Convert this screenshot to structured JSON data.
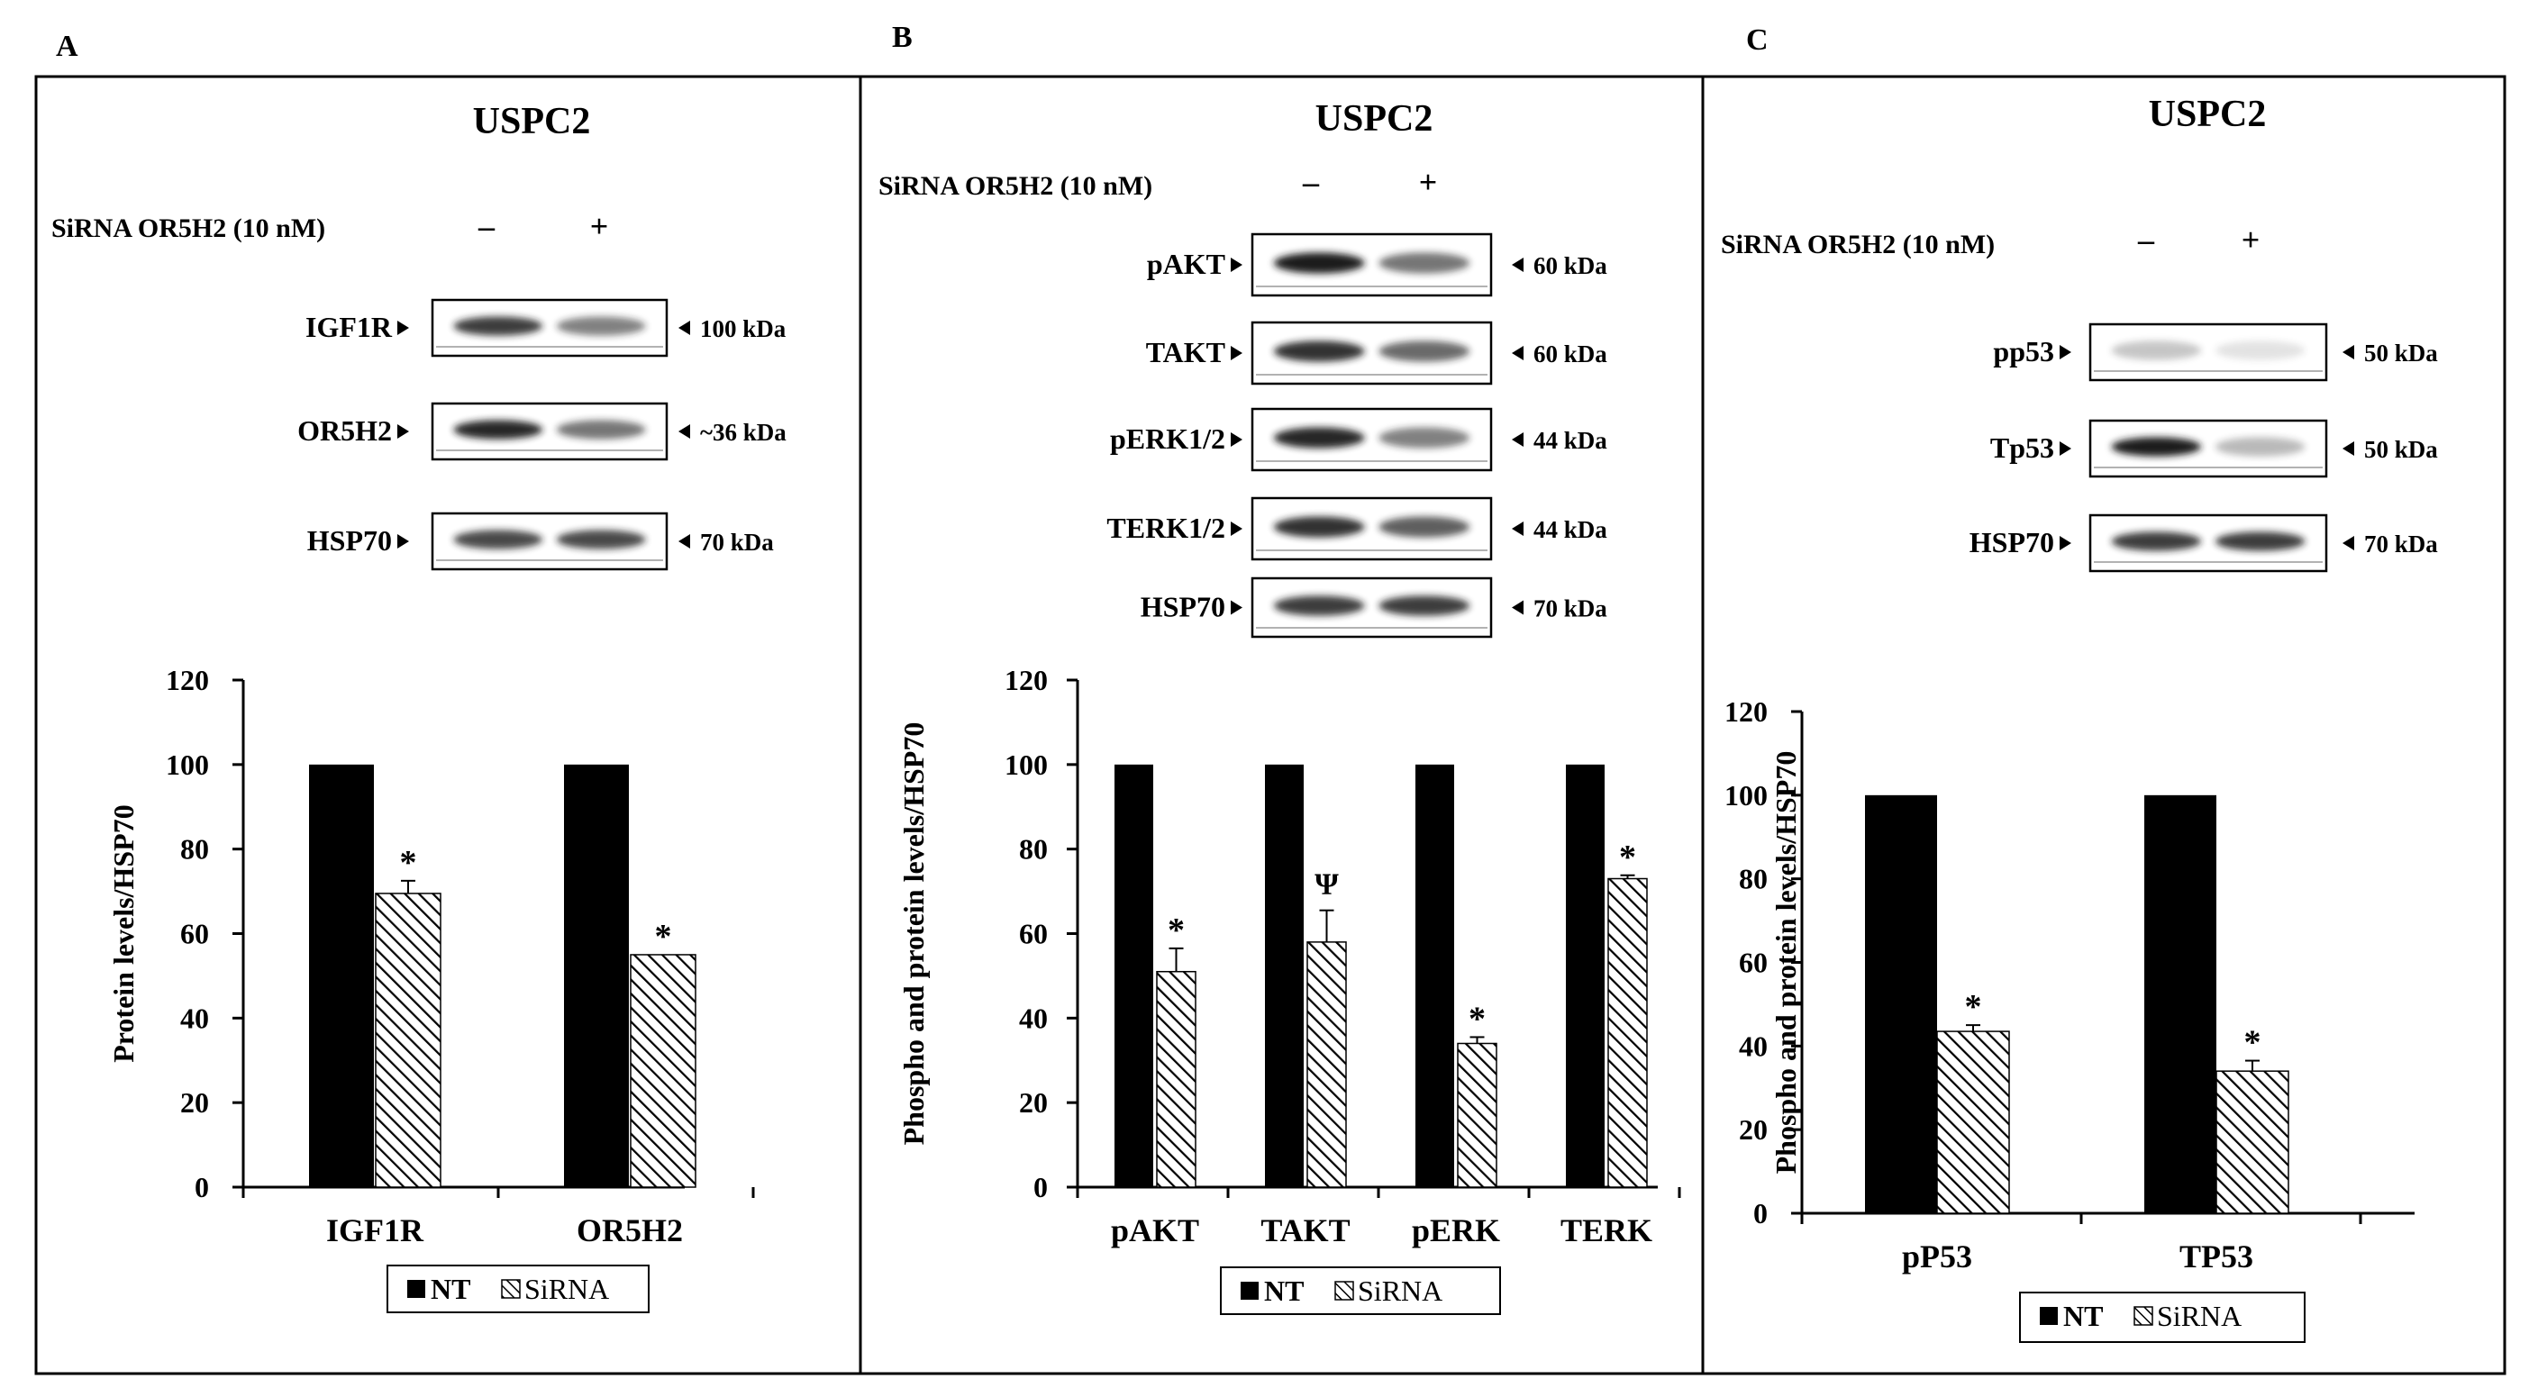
{
  "colors": {
    "nt": "#000000",
    "sirna_stroke": "#000000",
    "background": "#ffffff",
    "band": "#1a1a1a"
  },
  "panels": [
    {
      "letter": "A",
      "cell_line": "USPC2",
      "treatment_label": "SiRNA OR5H2 (10 nM)",
      "treatment_minus": "–",
      "treatment_plus": "+",
      "blots": [
        {
          "label": "IGF1R",
          "kda": "100 kDa",
          "nt_intensity": 0.85,
          "si_intensity": 0.55
        },
        {
          "label": "OR5H2",
          "kda": "~36 kDa",
          "nt_intensity": 0.95,
          "si_intensity": 0.6
        },
        {
          "label": "HSP70",
          "kda": "70 kDa",
          "nt_intensity": 0.8,
          "si_intensity": 0.8
        }
      ]
    },
    {
      "letter": "B",
      "cell_line": "USPC2",
      "treatment_label": "SiRNA OR5H2 (10 nM)",
      "treatment_minus": "–",
      "treatment_plus": "+",
      "blots": [
        {
          "label": "pAKT",
          "kda": "60 kDa",
          "nt_intensity": 1.0,
          "si_intensity": 0.6
        },
        {
          "label": "TAKT",
          "kda": "60 kDa",
          "nt_intensity": 0.9,
          "si_intensity": 0.65
        },
        {
          "label": "pERK1/2",
          "kda": "44 kDa",
          "nt_intensity": 0.95,
          "si_intensity": 0.55
        },
        {
          "label": "TERK1/2",
          "kda": "44 kDa",
          "nt_intensity": 0.9,
          "si_intensity": 0.7
        },
        {
          "label": "HSP70",
          "kda": "70 kDa",
          "nt_intensity": 0.85,
          "si_intensity": 0.85
        }
      ]
    },
    {
      "letter": "C",
      "cell_line": "USPC2",
      "treatment_label": "SiRNA OR5H2 (10 nM)",
      "treatment_minus": "–",
      "treatment_plus": "+",
      "blots": [
        {
          "label": "pp53",
          "kda": "50 kDa",
          "nt_intensity": 0.25,
          "si_intensity": 0.12
        },
        {
          "label": "Tp53",
          "kda": "50 kDa",
          "nt_intensity": 1.0,
          "si_intensity": 0.3
        },
        {
          "label": "HSP70",
          "kda": "70 kDa",
          "nt_intensity": 0.85,
          "si_intensity": 0.85
        }
      ]
    }
  ],
  "chart_data": [
    {
      "type": "bar",
      "categories": [
        "IGF1R",
        "OR5H2"
      ],
      "series": [
        {
          "name": "NT",
          "values": [
            100,
            100
          ],
          "errors": [
            0,
            0
          ]
        },
        {
          "name": "SiRNA",
          "values": [
            69.5,
            55
          ],
          "errors": [
            3,
            0
          ]
        }
      ],
      "annotations": [
        [
          "",
          "*"
        ],
        [
          "",
          "*"
        ]
      ],
      "title": "",
      "xlabel": "",
      "ylabel": "Protein levels/HSP70",
      "ylim": [
        0,
        120
      ],
      "yticks": [
        0,
        20,
        40,
        60,
        80,
        100,
        120
      ],
      "legend": [
        "NT",
        "SiRNA"
      ],
      "legend_position": "bottom"
    },
    {
      "type": "bar",
      "categories": [
        "pAKT",
        "TAKT",
        "pERK",
        "TERK"
      ],
      "series": [
        {
          "name": "NT",
          "values": [
            100,
            100,
            100,
            100
          ],
          "errors": [
            0,
            0,
            0,
            0
          ]
        },
        {
          "name": "SiRNA",
          "values": [
            51,
            58,
            34,
            73
          ],
          "errors": [
            5.5,
            7.5,
            1.5,
            0.8
          ]
        }
      ],
      "annotations": [
        [
          "",
          "*"
        ],
        [
          "",
          "Ψ"
        ],
        [
          "",
          "*"
        ],
        [
          "",
          "*"
        ]
      ],
      "title": "",
      "xlabel": "",
      "ylabel": "Phospho and protein levels/HSP70",
      "ylim": [
        0,
        120
      ],
      "yticks": [
        0,
        20,
        40,
        60,
        80,
        100,
        120
      ],
      "legend": [
        "NT",
        "SiRNA"
      ],
      "legend_position": "bottom"
    },
    {
      "type": "bar",
      "categories": [
        "pP53",
        "TP53"
      ],
      "series": [
        {
          "name": "NT",
          "values": [
            100,
            100
          ],
          "errors": [
            0,
            0
          ]
        },
        {
          "name": "SiRNA",
          "values": [
            43.5,
            34
          ],
          "errors": [
            1.5,
            2.5
          ]
        }
      ],
      "annotations": [
        [
          "",
          "*"
        ],
        [
          "",
          "*"
        ]
      ],
      "title": "",
      "xlabel": "",
      "ylabel": "Phospho and protein levels/HSP70",
      "ylim": [
        0,
        120
      ],
      "yticks": [
        0,
        20,
        40,
        60,
        80,
        100,
        120
      ],
      "legend": [
        "NT",
        "SiRNA"
      ],
      "legend_position": "bottom"
    }
  ]
}
